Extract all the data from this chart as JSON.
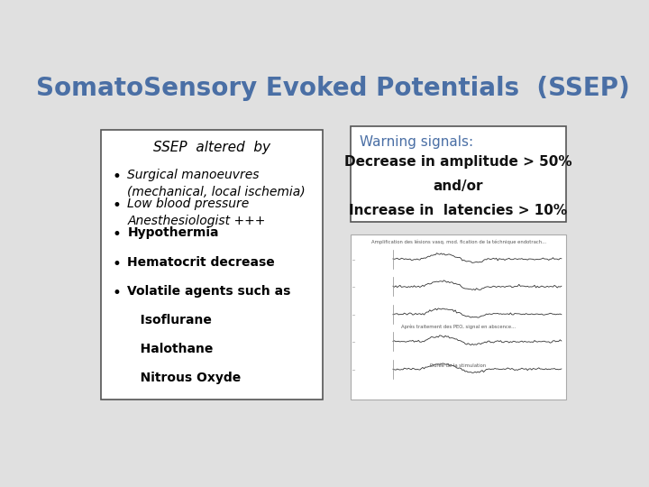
{
  "title": "SomatoSensory Evoked Potentials  (SSEP)",
  "title_color": "#4a6fa5",
  "title_fontsize": 20,
  "background_color": "#e0e0e0",
  "left_box": {
    "header": "SSEP  altered  by",
    "items": [
      {
        "bullet": true,
        "text": "Surgical manoeuvres\n(mechanical, local ischemia)",
        "style": "italic"
      },
      {
        "bullet": true,
        "text": "Low blood pressure\nAnesthesiologist +++",
        "style": "italic"
      },
      {
        "bullet": true,
        "text": "Hypothermia",
        "style": "bold"
      },
      {
        "bullet": true,
        "text": "Hematocrit decrease",
        "style": "bold"
      },
      {
        "bullet": true,
        "text": "Volatile agents such as",
        "style": "bold"
      },
      {
        "bullet": false,
        "text": "   Isoflurane",
        "style": "bold"
      },
      {
        "bullet": false,
        "text": "   Halothane",
        "style": "bold"
      },
      {
        "bullet": false,
        "text": "   Nitrous Oxyde",
        "style": "bold"
      }
    ]
  },
  "right_box": {
    "warning_label": "Warning signals:",
    "warning_color": "#4a6fa5",
    "line1": "Decrease in amplitude > 50%",
    "line2": "and/or",
    "line3": "Increase in  latencies > 10%",
    "text_color": "#111111"
  }
}
